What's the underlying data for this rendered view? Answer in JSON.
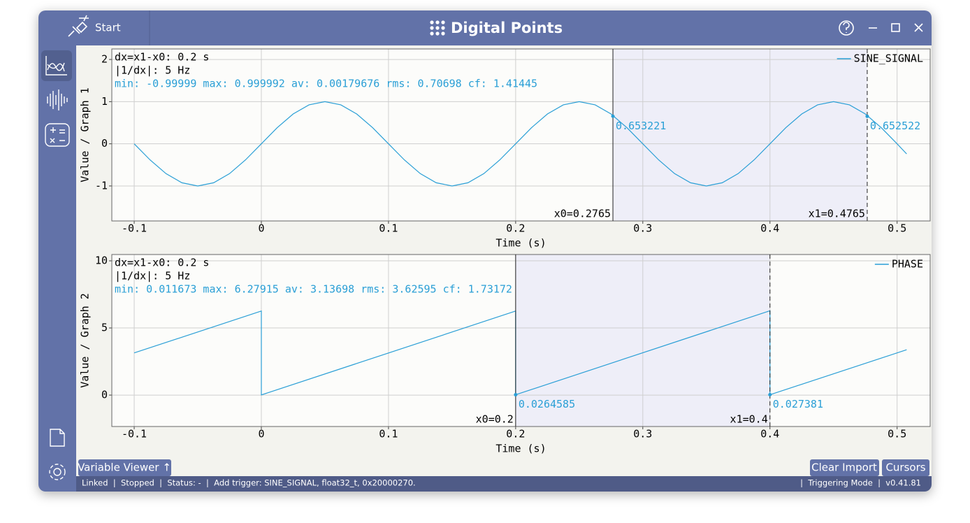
{
  "window": {
    "start": "Start",
    "title": "Digital Points"
  },
  "buttons": {
    "variable_viewer": "Variable Viewer ↑",
    "clear_import": "Clear Import",
    "cursors": "Cursors"
  },
  "status_bar": {
    "left": "Linked  |  Stopped  |  Status: -  |  Add trigger: SINE_SIGNAL, float32_t, 0x20000270.",
    "right": "|  Triggering Mode  |  v0.41.81"
  },
  "chart_data": [
    {
      "type": "line",
      "y_label": "Value / Graph 1",
      "x_label": "Time (s)",
      "dx_text": "dx=x1-x0: 0.2 s",
      "freq_text": "|1/dx|: 5 Hz",
      "stats_text": "min: -0.99999 max: 0.999992 av: 0.00179676 rms: 0.70698 cf: 1.41445",
      "x": [
        -0.1,
        -0.0875,
        -0.075,
        -0.0625,
        -0.05,
        -0.0375,
        -0.025,
        -0.0125,
        0,
        0.0125,
        0.025,
        0.0375,
        0.05,
        0.0625,
        0.075,
        0.0875,
        0.1,
        0.1125,
        0.125,
        0.1375,
        0.15,
        0.1625,
        0.175,
        0.1875,
        0.2,
        0.2125,
        0.225,
        0.2375,
        0.25,
        0.2625,
        0.275,
        0.2875,
        0.3,
        0.3125,
        0.325,
        0.3375,
        0.35,
        0.3625,
        0.375,
        0.3875,
        0.4,
        0.4125,
        0.425,
        0.4375,
        0.45,
        0.4625,
        0.475,
        0.4875,
        0.5,
        0.5075
      ],
      "series": [
        {
          "name": "SINE_SIGNAL",
          "color": "#2a9fd6",
          "values": [
            0,
            -0.3827,
            -0.7071,
            -0.9239,
            -1,
            -0.9239,
            -0.7071,
            -0.3827,
            0,
            0.3827,
            0.7071,
            0.9239,
            1,
            0.9239,
            0.7071,
            0.3827,
            0,
            -0.3827,
            -0.7071,
            -0.9239,
            -1,
            -0.9239,
            -0.7071,
            -0.3827,
            0,
            0.3827,
            0.7071,
            0.9239,
            1,
            0.9239,
            0.7071,
            0.3827,
            0,
            -0.3827,
            -0.7071,
            -0.9239,
            -1,
            -0.9239,
            -0.7071,
            -0.3827,
            0,
            0.3827,
            0.7071,
            0.9239,
            1,
            0.9239,
            0.7071,
            0.3827,
            0,
            -0.24
          ]
        }
      ],
      "xlim": [
        -0.1176,
        0.526
      ],
      "ylim": [
        -1.83,
        2.25
      ],
      "xticks": [
        -0.1,
        0,
        0.1,
        0.2,
        0.3,
        0.4,
        0.5
      ],
      "yticks": [
        -1,
        0,
        1,
        2
      ],
      "grid": true,
      "legend": "upper right",
      "cursors": [
        {
          "label": "x0=0.2765",
          "x": 0.2765,
          "value": 0.653221,
          "style": "solid"
        },
        {
          "label": "x1=0.4765",
          "x": 0.4765,
          "value": 0.652522,
          "style": "dashed"
        }
      ]
    },
    {
      "type": "line",
      "y_label": "Value / Graph 2",
      "x_label": "Time (s)",
      "dx_text": "dx=x1-x0: 0.2 s",
      "freq_text": "|1/dx|: 5 Hz",
      "stats_text": "min: 0.011673 max: 6.27915 av: 3.13698 rms: 3.62595 cf: 1.73172",
      "x": [
        -0.1,
        0,
        0,
        0.2,
        0.2,
        0.4,
        0.4,
        0.5075
      ],
      "series": [
        {
          "name": "PHASE",
          "color": "#2a9fd6",
          "values": [
            3.1416,
            6.2592,
            0.0117,
            6.2592,
            0.0265,
            6.2792,
            0.0274,
            3.3772
          ]
        }
      ],
      "xlim": [
        -0.1176,
        0.526
      ],
      "ylim": [
        -2.34,
        10.47
      ],
      "xticks": [
        -0.1,
        0,
        0.1,
        0.2,
        0.3,
        0.4,
        0.5
      ],
      "yticks": [
        0,
        5,
        10
      ],
      "grid": true,
      "legend": "upper right",
      "cursors": [
        {
          "label": "x0=0.2",
          "x": 0.2,
          "value": 0.0264585,
          "style": "solid"
        },
        {
          "label": "x1=0.4",
          "x": 0.4,
          "value": 0.027381,
          "style": "dashed"
        }
      ]
    }
  ]
}
